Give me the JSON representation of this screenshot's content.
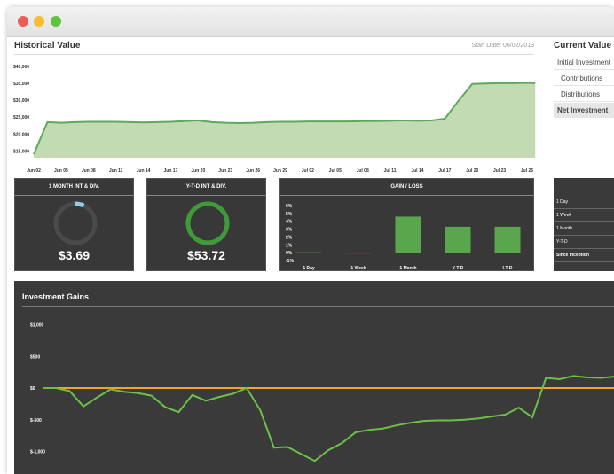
{
  "historical": {
    "title": "Historical Value",
    "start_date": "Start Date: 06/02/2013"
  },
  "current_value": {
    "title": "Current Value",
    "items": [
      "Initial Investment",
      "Contributions",
      "Distributions",
      "Net Investment"
    ]
  },
  "panels": {
    "month": {
      "title": "1 MONTH INT & DIV.",
      "value": "$3.69",
      "fraction": 0.07,
      "ring_color": "#8ecfe6"
    },
    "ytd": {
      "title": "Y-T-D INT & DIV.",
      "value": "$53.72",
      "fraction": 1.0,
      "ring_color": "#3f9a3a"
    },
    "gain": {
      "title": "GAIN / LOSS"
    }
  },
  "right_table": {
    "items": [
      "1 Day",
      "1 Week",
      "1 Month",
      "Y-T-D",
      "Since Inception"
    ]
  },
  "investment_gains": {
    "title": "Investment Gains"
  },
  "colors": {
    "area_fill": "#c3dbb3",
    "area_line": "#5ea95a",
    "bar_green": "#5aa64d",
    "bar_red": "#d9534f",
    "zero_line": "#f2a524",
    "gains_line": "#6cc04a"
  },
  "chart_data": [
    {
      "type": "area",
      "title": "Historical Value",
      "categories": [
        "Jun 02",
        "Jun 05",
        "Jun 08",
        "Jun 11",
        "Jun 14",
        "Jun 17",
        "Jun 20",
        "Jun 23",
        "Jun 26",
        "Jun 29",
        "Jul 02",
        "Jul 05",
        "Jul 08",
        "Jul 11",
        "Jul 14",
        "Jul 17",
        "Jul 20",
        "Jul 23",
        "Jul 26"
      ],
      "yticks": [
        "$40,000",
        "$35,000",
        "$30,000",
        "$25,000",
        "$20,000",
        "$15,000"
      ],
      "ylim": [
        13000,
        41000
      ],
      "x": [
        0.0,
        0.5,
        1.0,
        1.5,
        2.0,
        2.5,
        3.0,
        3.5,
        4.0,
        4.5,
        5.0,
        5.5,
        6.0,
        6.5,
        7.0,
        7.5,
        8.0,
        8.5,
        9.0,
        9.5,
        10.0,
        10.5,
        11.0,
        11.5,
        12.0,
        12.5,
        13.0,
        13.5,
        14.0,
        14.5,
        15.0,
        15.5,
        16.0,
        16.5,
        17.0,
        17.5,
        18.0,
        18.3
      ],
      "values": [
        14000,
        23500,
        23300,
        23500,
        23600,
        23600,
        23600,
        23500,
        23400,
        23500,
        23600,
        23800,
        24000,
        23500,
        23300,
        23200,
        23300,
        23500,
        23600,
        23600,
        23700,
        23700,
        23700,
        23700,
        23800,
        23800,
        23900,
        24000,
        23900,
        24000,
        24500,
        29800,
        34800,
        34900,
        35000,
        35000,
        35100,
        35000
      ]
    },
    {
      "type": "bar",
      "title": "GAIN / LOSS",
      "categories": [
        "1 Day",
        "1 Week",
        "1 Month",
        "Y-T-D",
        "I-T-D"
      ],
      "yticks": [
        "6%",
        "5%",
        "4%",
        "3%",
        "2%",
        "1%",
        "0%",
        "-1%"
      ],
      "ylim": [
        -1,
        6
      ],
      "values": [
        0.05,
        -0.05,
        4.6,
        3.3,
        3.3
      ]
    },
    {
      "type": "line",
      "title": "Investment Gains",
      "yticks": [
        "$1,000",
        "$500",
        "$0",
        "$-500",
        "$-1,000"
      ],
      "ylim": [
        -1400,
        1100
      ],
      "x": [
        0,
        1,
        2,
        3,
        4,
        5,
        6,
        7,
        8,
        9,
        10,
        11,
        12,
        13,
        14,
        15,
        16,
        17,
        18,
        19,
        20,
        21,
        22,
        23,
        24,
        25,
        26,
        27,
        28,
        29,
        30,
        31,
        32,
        33,
        34,
        35,
        36,
        37,
        38,
        39,
        40,
        41,
        42
      ],
      "values": [
        0,
        0,
        -50,
        -290,
        -150,
        -20,
        -60,
        -80,
        -120,
        -300,
        -380,
        -110,
        -200,
        -140,
        -90,
        0,
        -350,
        -940,
        -930,
        -1040,
        -1150,
        -980,
        -870,
        -700,
        -660,
        -640,
        -590,
        -550,
        -520,
        -510,
        -510,
        -500,
        -480,
        -450,
        -420,
        -310,
        -460,
        160,
        140,
        190,
        170,
        160,
        180
      ]
    }
  ]
}
